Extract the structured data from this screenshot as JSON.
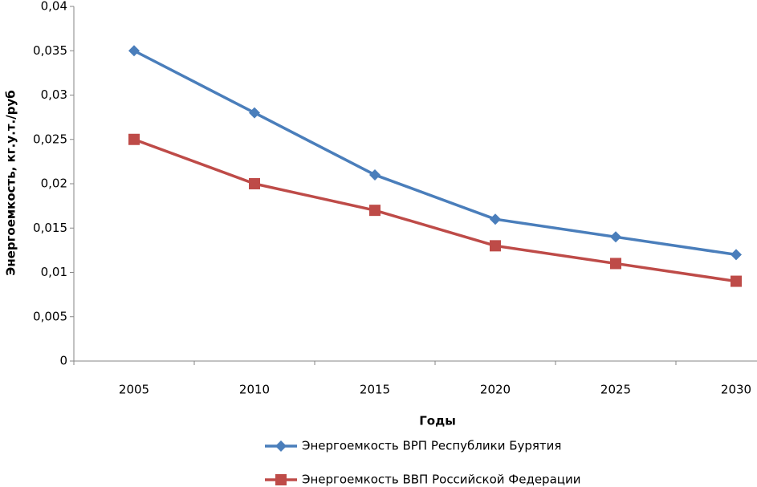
{
  "chart_data": {
    "type": "line",
    "categories": [
      "2005",
      "2010",
      "2015",
      "2020",
      "2025",
      "2030"
    ],
    "xlabel": "Годы",
    "ylabel": "Энергоемкость, кг.у.т./руб",
    "ylim": [
      0,
      0.04
    ],
    "yticks": [
      0,
      {
        "value": 0.005,
        "label": "0,005"
      },
      {
        "value": 0.01,
        "label": "0,01"
      },
      {
        "value": 0.015,
        "label": "0,015"
      },
      {
        "value": 0.02,
        "label": "0,02"
      },
      {
        "value": 0.025,
        "label": "0,025"
      },
      {
        "value": 0.03,
        "label": "0,03"
      },
      {
        "value": 0.035,
        "label": "0,035"
      },
      {
        "value": 0.04,
        "label": "0,04"
      }
    ],
    "legend": "bottom",
    "series": [
      {
        "name": "Энергоемкость ВРП Республики Бурятия",
        "color": "#4a7ebb",
        "marker": "diamond",
        "values": [
          0.035,
          0.028,
          0.021,
          0.016,
          0.014,
          0.012
        ]
      },
      {
        "name": "Энергоемкость ВВП Российской Федерации",
        "color": "#be4b48",
        "marker": "square",
        "values": [
          0.025,
          0.02,
          0.017,
          0.013,
          0.011,
          0.009
        ]
      }
    ]
  }
}
